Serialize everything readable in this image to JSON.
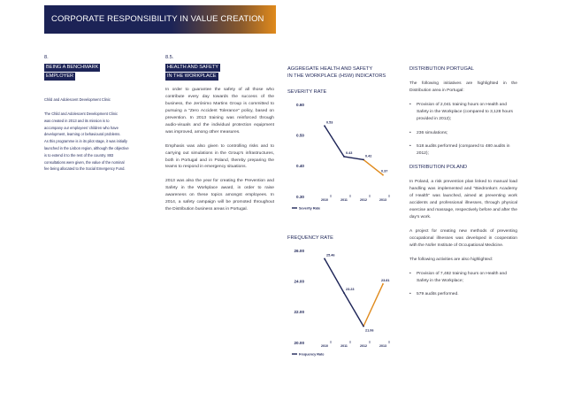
{
  "header": {
    "title": "CORPORATE RESPONSIBILITY IN VALUE CREATION"
  },
  "section8": {
    "number": "8.",
    "tag_line1": "BEING A BENCHMARK",
    "tag_line2": "EMPLOYER",
    "subhead": "Child and Adolescent Development Clinic",
    "lines": [
      "The Child and Adolescent Development Clinic",
      "was created in 2013 and its mission is to",
      "accompany our employees' children who have",
      "development, learning or behavioural problems.",
      "As this programme is in its pilot stage, it was initially",
      "launched in the Lisbon region, although the objective",
      "is to extend it to the rest of the country. 883",
      "consultations were given, the value of the nominal",
      "fee being allocated to the Social Emergency Fund."
    ]
  },
  "section85": {
    "number": "8.5.",
    "tag_line1": "HEALTH AND SAFETY",
    "tag_line2": "IN THE WORKPLACE",
    "paragraphs": [
      "In order to guarantee the safety of all those who contribute every day towards the success of the business, the Jerónimo Martins Group is committed to pursuing a \"Zero Accident Tolerance\" policy, based on prevention. In 2013 training was reinforced through audio-visuals and the individual protection equipment was improved, among other measures.",
      "Emphasis was also given to controlling risks and to carrying out simulations in the Group's infrastructures, both in Portugal and in Poland, thereby preparing the teams to respond in emergency situations.",
      "2013 was also the year for creating the Prevention and Safety in the Workplace award, in order to raise awareness on these topics amongst employees. In 2014, a safety campaign will be promoted throughout the Distribution business areas in Portugal."
    ]
  },
  "charts_header": {
    "line1": "AGGREGATE HEALTH AND SAFETY",
    "line2": "IN THE WORKPLACE (HSW) INDICATORS"
  },
  "chart_data": [
    {
      "type": "line",
      "title": "SEVERITY RATE",
      "x": [
        "2010",
        "2011",
        "2012",
        "2013"
      ],
      "series": [
        {
          "name": "Severity Rate",
          "values": [
            0.53,
            0.43,
            0.42,
            0.37
          ]
        }
      ],
      "y_ticks": [
        "0.60",
        "0.50",
        "0.40",
        "0.30"
      ],
      "value_labels": [
        "0.53",
        "0.43",
        "0.42",
        "0.37"
      ],
      "ylim": [
        0.3,
        0.6
      ],
      "colors": {
        "main": "#1d2457",
        "last_segment": "#e08a1c"
      }
    },
    {
      "type": "line",
      "title": "FREQUENCY RATE",
      "x": [
        "2010",
        "2011",
        "2012",
        "2013"
      ],
      "series": [
        {
          "name": "Frequency Rate",
          "values": [
            25.46,
            23.23,
            21.06,
            23.81
          ]
        }
      ],
      "y_ticks": [
        "26.00",
        "24.00",
        "22.00",
        "20.00"
      ],
      "value_labels": [
        "25.46",
        "23.23",
        "21.06",
        "23.81"
      ],
      "ylim": [
        20.0,
        26.0
      ],
      "colors": {
        "main": "#1d2457",
        "last_segment": "#e08a1c"
      }
    }
  ],
  "right": {
    "portugal_heading": "DISTRIBUTION PORTUGAL",
    "portugal_intro": "The following initiatives are highlighted in the Distribution area in Portugal:",
    "portugal_items": [
      "Provision of 2,041 training hours on Health and Safety in the Workplace (compared to 3,128 hours provided in 2012);",
      "236 simulations;",
      "518 audits performed (compared to 480 audits in 2012);"
    ],
    "poland_heading": "DISTRIBUTION POLAND",
    "poland_paragraphs": [
      "In Poland, a risk prevention plan linked to manual load handling was implemented and \"Biedronka's Academy of Health\" was launched, aimed at preventing work accidents and professional illnesses, through physical exercise and massage, respectively before and after the day's work.",
      "A project for creating new methods of preventing occupational illnesses was developed in cooperation with the Nofer Institute of Occupational Medicine.",
      "The following activities are also highlighted:"
    ],
    "poland_items": [
      "Provision of 7,482 training hours on Health and Safety in the Workplace;",
      "579 audits performed."
    ]
  }
}
